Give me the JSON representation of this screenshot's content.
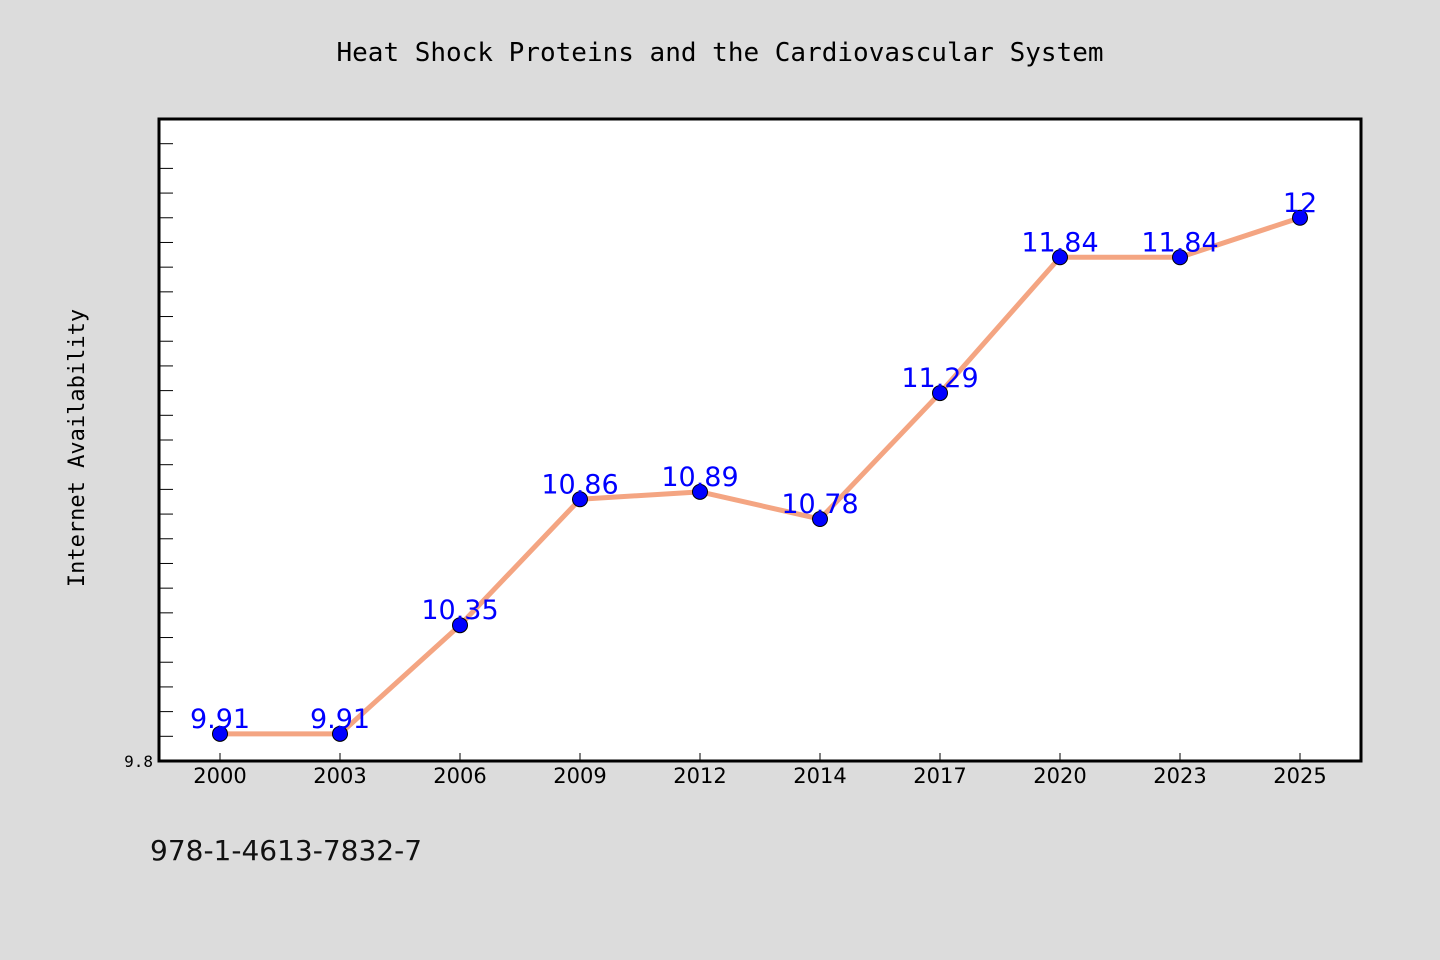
{
  "caption": "978-1-4613-7832-7",
  "chart_data": {
    "type": "line",
    "title": "Heat Shock Proteins and the Cardiovascular System",
    "xlabel": "",
    "ylabel": "Internet Availability",
    "categories": [
      "2000",
      "2003",
      "2006",
      "2009",
      "2012",
      "2014",
      "2017",
      "2020",
      "2023",
      "2025"
    ],
    "series": [
      {
        "values": [
          9.91,
          9.91,
          10.35,
          10.86,
          10.89,
          10.78,
          11.29,
          11.84,
          11.84,
          12
        ]
      }
    ],
    "data_labels": [
      "9.91",
      "9.91",
      "10.35",
      "10.86",
      "10.89",
      "10.78",
      "11.29",
      "11.84",
      "11.84",
      "12"
    ],
    "yticks": [
      "9.8"
    ],
    "ylim": [
      9.8,
      12.4
    ],
    "grid": false,
    "colors": {
      "line": "#f4a582",
      "marker": "#0000ff",
      "label": "#0000ff",
      "background": "#dcdcdc",
      "plot_bg": "#ffffff"
    }
  }
}
